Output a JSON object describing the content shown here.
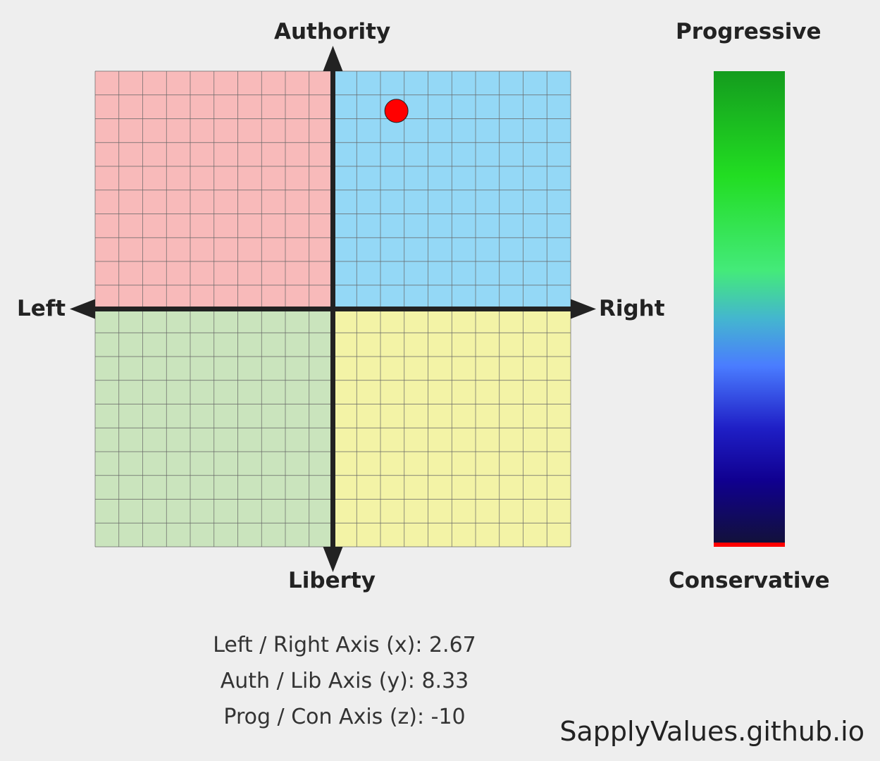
{
  "chart_data": {
    "type": "scatter",
    "xlabel_left": "Left",
    "xlabel_right": "Right",
    "ylabel_top": "Authority",
    "ylabel_bottom": "Liberty",
    "xlim": [
      -10,
      10
    ],
    "ylim": [
      -10,
      10
    ],
    "grid": true,
    "quadrant_colors": {
      "auth_left": "#f8baba",
      "auth_right": "#94d8f6",
      "lib_left": "#cae4bd",
      "lib_right": "#f3f3a6"
    },
    "point": {
      "x": 2.67,
      "y": 8.33,
      "color": "#ff0000"
    },
    "z_scale": {
      "label_top": "Progressive",
      "label_bottom": "Conservative",
      "range": [
        -10,
        10
      ],
      "value": -10,
      "marker_color": "#ff0000"
    }
  },
  "stats": {
    "x_line": "Left / Right Axis (x): 2.67",
    "y_line": "Auth / Lib Axis (y): 8.33",
    "z_line": "Prog / Con Axis (z): -10"
  },
  "footer": {
    "site": "SapplyValues.github.io"
  }
}
